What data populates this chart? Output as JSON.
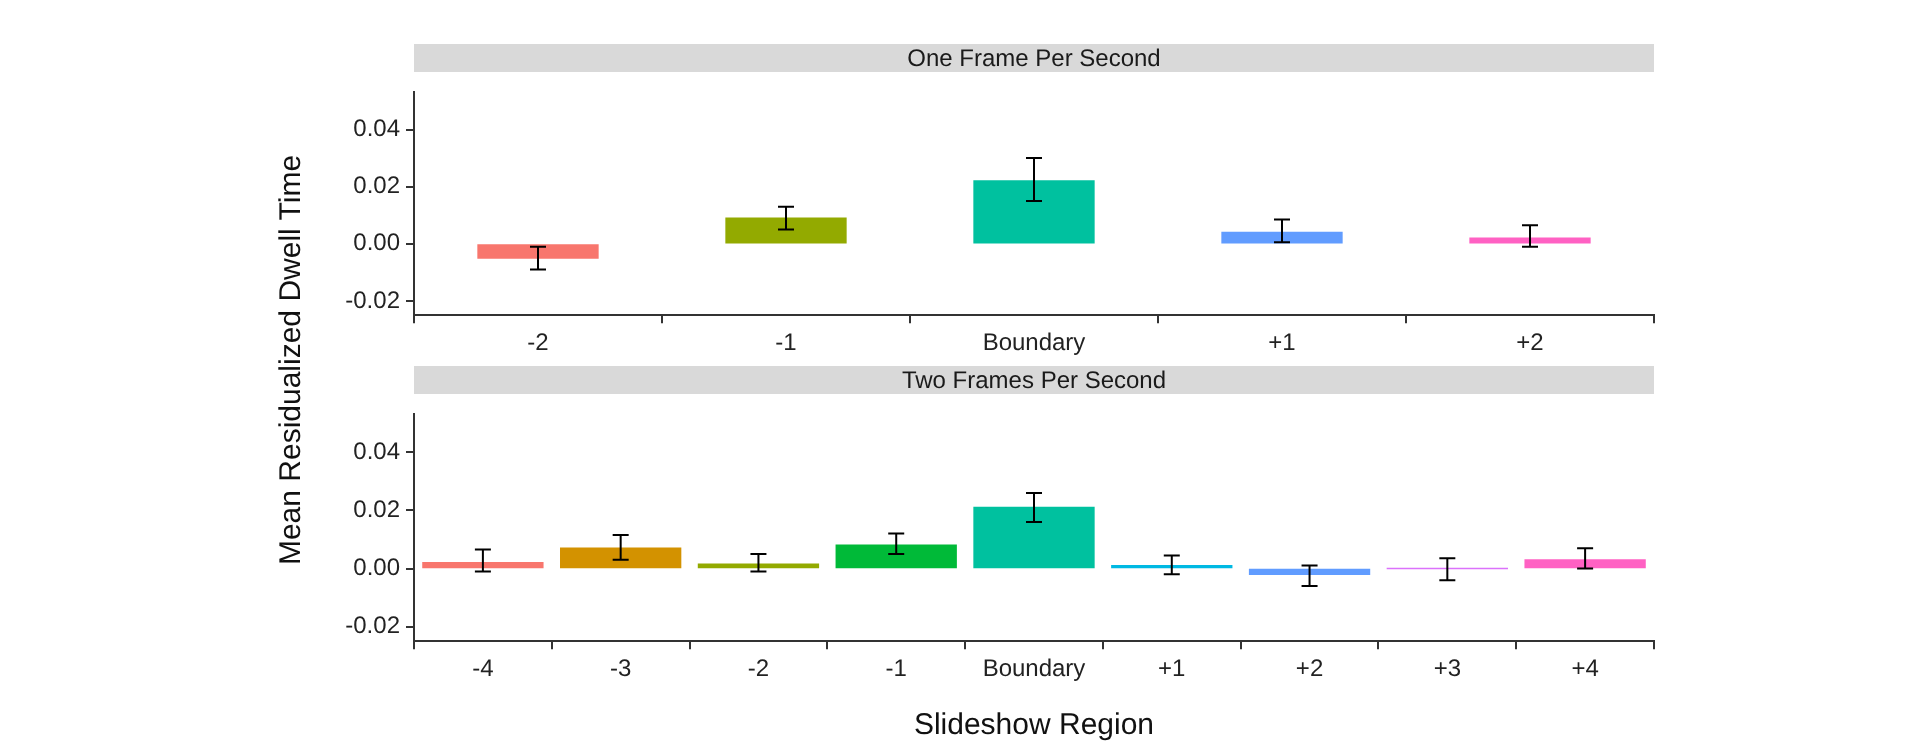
{
  "chart_data": [
    {
      "type": "bar",
      "title": "One Frame Per Second",
      "ylabel": "Mean Residualized Dwell Time",
      "categories": [
        "-2",
        "-1",
        "Boundary",
        "+1",
        "+2"
      ],
      "values": [
        -0.005,
        0.009,
        0.022,
        0.004,
        0.002
      ],
      "errors": [
        [
          -0.009,
          -0.001
        ],
        [
          0.005,
          0.013
        ],
        [
          0.015,
          0.03
        ],
        [
          0.0005,
          0.0085
        ],
        [
          -0.001,
          0.0065
        ]
      ],
      "colors": [
        "#f8766d",
        "#93aa00",
        "#00c19f",
        "#619cff",
        "#ff61c3"
      ],
      "ylim": [
        -0.025,
        0.053
      ],
      "yticks": [
        {
          "value": -0.02,
          "label": "-0.02"
        },
        {
          "value": 0,
          "label": "0.00"
        },
        {
          "value": 0.02,
          "label": "0.02"
        },
        {
          "value": 0.04,
          "label": "0.04"
        }
      ],
      "grid": false,
      "legend": false
    },
    {
      "type": "bar",
      "title": "Two Frames Per Second",
      "xlabel": "Slideshow Region",
      "categories": [
        "-4",
        "-3",
        "-2",
        "-1",
        "Boundary",
        "+1",
        "+2",
        "+3",
        "+4"
      ],
      "values": [
        0.002,
        0.007,
        0.0015,
        0.008,
        0.021,
        0.001,
        -0.002,
        0,
        0.003
      ],
      "errors": [
        [
          -0.001,
          0.0065
        ],
        [
          0.003,
          0.0115
        ],
        [
          -0.001,
          0.005
        ],
        [
          0.005,
          0.012
        ],
        [
          0.016,
          0.026
        ],
        [
          -0.002,
          0.0045
        ],
        [
          -0.006,
          0.001
        ],
        [
          -0.004,
          0.0035
        ],
        [
          0,
          0.007
        ]
      ],
      "colors": [
        "#f8766d",
        "#d39200",
        "#93aa00",
        "#00ba38",
        "#00c19f",
        "#00b9e3",
        "#619cff",
        "#db72fb",
        "#ff61c3"
      ],
      "ylim": [
        -0.025,
        0.053
      ],
      "yticks": [
        {
          "value": -0.02,
          "label": "-0.02"
        },
        {
          "value": 0,
          "label": "0.00"
        },
        {
          "value": 0.02,
          "label": "0.02"
        },
        {
          "value": 0.04,
          "label": "0.04"
        }
      ],
      "grid": false,
      "legend": false
    }
  ]
}
